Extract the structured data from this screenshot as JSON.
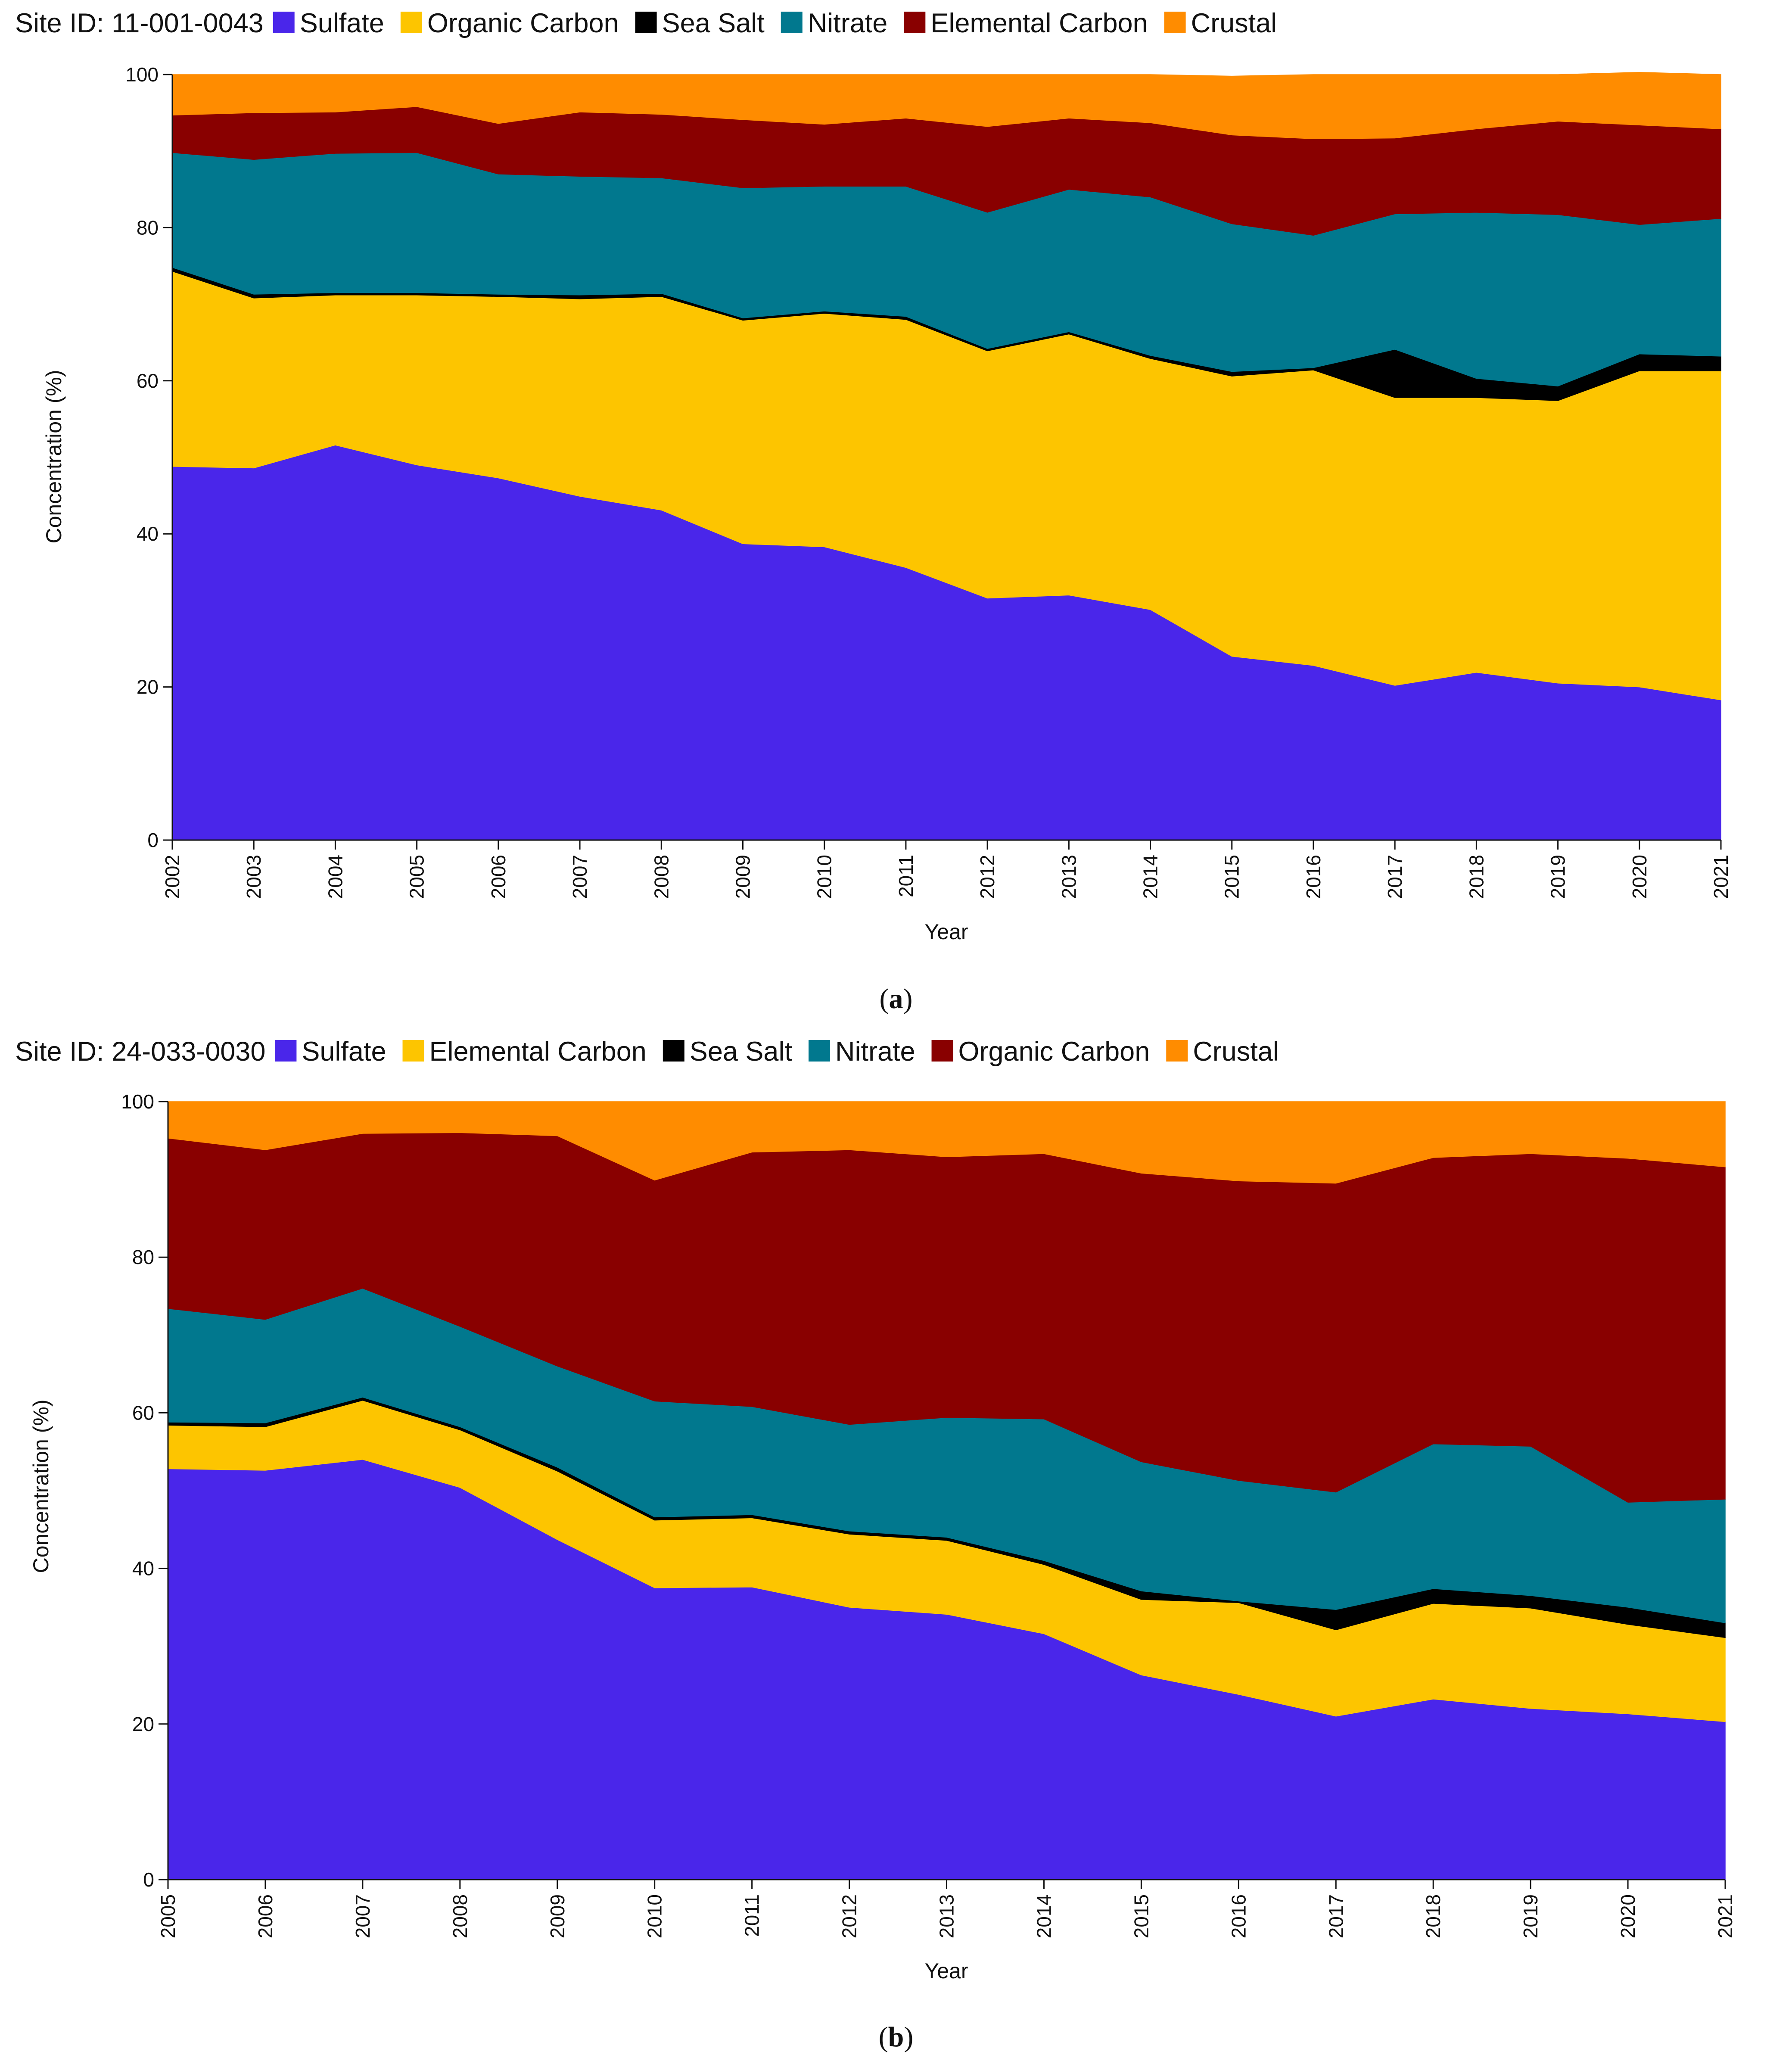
{
  "chart_data": [
    {
      "type": "area",
      "stacked": true,
      "site_label": "Site ID: 11-001-0043",
      "xlabel": "Year",
      "ylabel": "Concentration (%)",
      "ylim": [
        0,
        100
      ],
      "yticks": [
        0,
        20,
        40,
        60,
        80,
        100
      ],
      "caption_letter": "a",
      "legend_position": "top",
      "x": [
        2002,
        2003,
        2004,
        2005,
        2006,
        2007,
        2008,
        2009,
        2010,
        2011,
        2012,
        2013,
        2014,
        2015,
        2016,
        2017,
        2018,
        2019,
        2020,
        2021
      ],
      "series": [
        {
          "name": "Sulfate",
          "color": "#4a26ea",
          "values": [
            48.8,
            48.6,
            51.6,
            49.0,
            47.3,
            44.9,
            43.1,
            38.7,
            38.3,
            35.6,
            31.6,
            32.0,
            30.1,
            24.0,
            22.8,
            20.2,
            21.9,
            20.5,
            20.0,
            18.3
          ]
        },
        {
          "name": "Organic Carbon",
          "color": "#fdc500",
          "values": [
            25.5,
            22.2,
            19.6,
            22.2,
            23.7,
            25.8,
            27.9,
            29.2,
            30.5,
            32.4,
            32.3,
            34.1,
            32.8,
            36.6,
            38.6,
            37.6,
            35.9,
            36.9,
            41.3,
            43.0
          ]
        },
        {
          "name": "Sea Salt",
          "color": "#000000",
          "values": [
            0.5,
            0.5,
            0.3,
            0.3,
            0.3,
            0.5,
            0.4,
            0.3,
            0.3,
            0.4,
            0.3,
            0.3,
            0.4,
            0.6,
            0.3,
            6.3,
            2.5,
            1.9,
            2.2,
            1.9
          ]
        },
        {
          "name": "Nitrate",
          "color": "#01788e",
          "values": [
            15.0,
            17.6,
            18.2,
            18.3,
            15.7,
            15.5,
            15.1,
            17.0,
            16.3,
            17.0,
            17.8,
            18.6,
            20.7,
            19.3,
            17.3,
            17.7,
            21.7,
            22.4,
            16.9,
            18.0
          ]
        },
        {
          "name": "Elemental Carbon",
          "color": "#890000",
          "values": [
            4.9,
            6.1,
            5.4,
            6.0,
            6.6,
            8.4,
            8.3,
            8.9,
            8.1,
            8.9,
            11.2,
            9.3,
            9.7,
            11.6,
            12.6,
            9.9,
            10.9,
            12.2,
            13.0,
            11.7
          ]
        },
        {
          "name": "Crustal",
          "color": "#ff8c00",
          "values": [
            5.3,
            5.0,
            4.9,
            4.2,
            6.4,
            4.9,
            5.2,
            5.9,
            6.5,
            5.7,
            6.8,
            5.7,
            6.3,
            7.7,
            8.4,
            8.3,
            7.1,
            6.1,
            6.9,
            7.1
          ]
        }
      ]
    },
    {
      "type": "area",
      "stacked": true,
      "site_label": "Site ID: 24-033-0030",
      "xlabel": "Year",
      "ylabel": "Concentration (%)",
      "ylim": [
        0,
        100
      ],
      "yticks": [
        0,
        20,
        40,
        60,
        80,
        100
      ],
      "caption_letter": "b",
      "legend_position": "top",
      "x": [
        2005,
        2006,
        2007,
        2008,
        2009,
        2010,
        2011,
        2012,
        2013,
        2014,
        2015,
        2016,
        2017,
        2018,
        2019,
        2020,
        2021
      ],
      "series": [
        {
          "name": "Sulfate",
          "color": "#4a26ea",
          "values": [
            52.8,
            52.6,
            54.0,
            50.4,
            43.7,
            37.5,
            37.6,
            35.0,
            34.1,
            31.6,
            26.3,
            23.8,
            21.0,
            23.2,
            22.0,
            21.3,
            20.3
          ]
        },
        {
          "name": "Elemental Carbon",
          "color": "#fdc500",
          "values": [
            5.6,
            5.6,
            7.6,
            7.4,
            8.8,
            8.7,
            8.9,
            9.4,
            9.5,
            8.9,
            9.7,
            11.8,
            11.1,
            12.3,
            12.9,
            11.5,
            10.8
          ]
        },
        {
          "name": "Sea Salt",
          "color": "#000000",
          "values": [
            0.4,
            0.5,
            0.4,
            0.4,
            0.5,
            0.4,
            0.4,
            0.4,
            0.4,
            0.5,
            1.1,
            0.2,
            2.6,
            1.9,
            1.6,
            2.2,
            1.9
          ]
        },
        {
          "name": "Nitrate",
          "color": "#01788e",
          "values": [
            14.6,
            13.3,
            14.0,
            12.9,
            13.0,
            14.9,
            13.9,
            13.7,
            15.4,
            18.2,
            16.6,
            15.5,
            15.1,
            18.6,
            19.2,
            13.5,
            15.9
          ]
        },
        {
          "name": "Organic Carbon",
          "color": "#890000",
          "values": [
            21.9,
            21.8,
            19.9,
            24.9,
            29.6,
            28.4,
            32.7,
            35.3,
            33.5,
            34.1,
            37.1,
            38.5,
            39.7,
            36.8,
            37.6,
            44.2,
            42.7
          ]
        },
        {
          "name": "Crustal",
          "color": "#ff8c00",
          "values": [
            4.7,
            6.2,
            4.1,
            4.0,
            4.4,
            10.1,
            6.5,
            6.2,
            7.1,
            6.7,
            9.2,
            10.2,
            10.5,
            7.2,
            6.7,
            7.3,
            8.4
          ]
        }
      ]
    }
  ]
}
